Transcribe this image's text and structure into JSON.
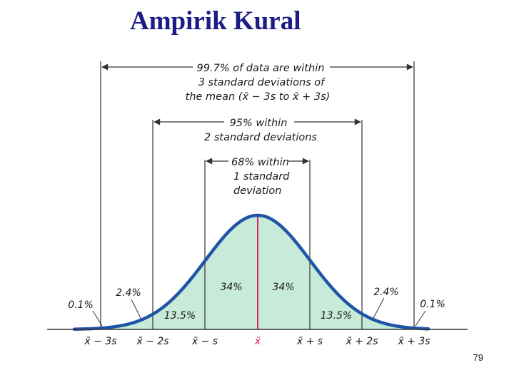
{
  "title": "Ampirik Kural",
  "page_number": "79",
  "colors": {
    "title": "#1c1c86",
    "curve": "#1f55a6",
    "fill": "#c8ead8",
    "mean_line": "#e0206a",
    "axis": "#333333"
  },
  "annotations": {
    "range_99_7": [
      "99.7% of data are within",
      "3 standard deviations of",
      "the mean (x̄ − 3s to x̄ + 3s)"
    ],
    "range_95": [
      "95% within",
      "2 standard deviations"
    ],
    "range_68": [
      "68% within",
      "1 standard",
      "deviation"
    ]
  },
  "region_labels": {
    "left_tail": "0.1%",
    "left_2_3": "2.4%",
    "left_1_2": "13.5%",
    "left_0_1": "34%",
    "right_0_1": "34%",
    "right_1_2": "13.5%",
    "right_2_3": "2.4%",
    "right_tail": "0.1%"
  },
  "axis_labels": [
    "x̄ − 3s",
    "x̄ − 2s",
    "x̄ − s",
    "x̄",
    "x̄ + s",
    "x̄ + 2s",
    "x̄ + 3s"
  ]
}
